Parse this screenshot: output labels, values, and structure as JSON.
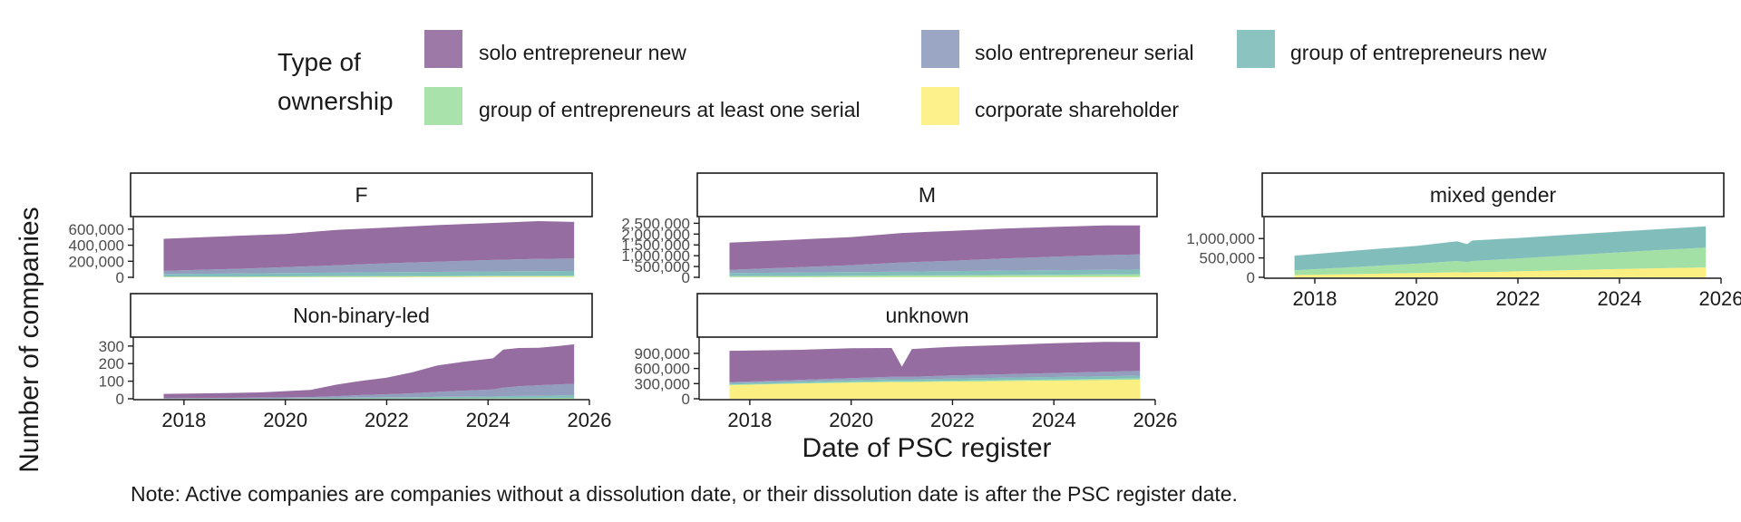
{
  "legend": {
    "title_line1": "Type of",
    "title_line2": "ownership",
    "items": [
      {
        "label": "solo entrepreneur new",
        "color": "#8C6198"
      },
      {
        "label": "solo entrepreneur serial",
        "color": "#8A96BA"
      },
      {
        "label": "group of entrepreneurs new",
        "color": "#76B9B5"
      },
      {
        "label": "group of entrepreneurs at least one serial",
        "color": "#9BDD9E"
      },
      {
        "label": "corporate shareholder",
        "color": "#FCEE77"
      }
    ]
  },
  "axis": {
    "x_title": "Date of PSC register",
    "y_title": "Number of companies"
  },
  "note": "Note: Active companies are companies without a dissolution date, or their dissolution date is after the PSC register date.",
  "chart_data": {
    "type": "area",
    "stacked": true,
    "facet_by": "gender of ownership",
    "x_ticks": [
      "2018",
      "2020",
      "2022",
      "2024",
      "2026"
    ],
    "xlim": [
      2017.0,
      2026.0
    ],
    "stack_order_bottom_to_top": [
      "corporate shareholder",
      "group of entrepreneurs at least one serial",
      "group of entrepreneurs new",
      "solo entrepreneur serial",
      "solo entrepreneur new"
    ],
    "panels": [
      {
        "title": "F",
        "y_ticks": [
          0,
          200000,
          400000,
          600000
        ],
        "y_tick_labels": [
          "0",
          "200,000",
          "400,000",
          "600,000"
        ],
        "ylim": [
          0,
          700000
        ],
        "x": [
          2017.6,
          2019,
          2020,
          2021,
          2022,
          2023,
          2024,
          2025,
          2025.7
        ],
        "series": [
          {
            "name": "corporate shareholder",
            "values": [
              3000,
              3500,
              4000,
              5000,
              6000,
              7000,
              8000,
              9000,
              9000
            ]
          },
          {
            "name": "group of entrepreneurs at least one serial",
            "values": [
              5000,
              6000,
              7000,
              8000,
              9000,
              10000,
              11000,
              12000,
              12000
            ]
          },
          {
            "name": "group of entrepreneurs new",
            "values": [
              35000,
              38000,
              42000,
              45000,
              48000,
              51000,
              54000,
              57000,
              58000
            ]
          },
          {
            "name": "solo entrepreneur serial",
            "values": [
              37000,
              58000,
              73000,
              92000,
              112000,
              127000,
              142000,
              152000,
              156000
            ]
          },
          {
            "name": "solo entrepreneur new",
            "values": [
              400000,
              410000,
              414000,
              440000,
              445000,
              455000,
              460000,
              470000,
              455000
            ]
          }
        ]
      },
      {
        "title": "M",
        "y_ticks": [
          0,
          500000,
          1000000,
          1500000,
          2000000,
          2500000
        ],
        "y_tick_labels": [
          "0",
          "500,000",
          "1,000,000",
          "1,500,000",
          "2,000,000",
          "2,500,000"
        ],
        "ylim": [
          0,
          2600000
        ],
        "x": [
          2017.6,
          2019,
          2020,
          2021,
          2022,
          2023,
          2024,
          2025,
          2025.7
        ],
        "series": [
          {
            "name": "corporate shareholder",
            "values": [
              10000,
              12000,
              14000,
              16000,
              18000,
              20000,
              22000,
              24000,
              25000
            ]
          },
          {
            "name": "group of entrepreneurs at least one serial",
            "values": [
              40000,
              50000,
              60000,
              70000,
              80000,
              90000,
              100000,
              110000,
              115000
            ]
          },
          {
            "name": "group of entrepreneurs new",
            "values": [
              150000,
              160000,
              170000,
              180000,
              190000,
              200000,
              210000,
              215000,
              220000
            ]
          },
          {
            "name": "solo entrepreneur serial",
            "values": [
              150000,
              250000,
              320000,
              420000,
              480000,
              560000,
              620000,
              680000,
              700000
            ]
          },
          {
            "name": "solo entrepreneur new",
            "values": [
              1250000,
              1280000,
              1296000,
              1364000,
              1382000,
              1380000,
              1378000,
              1371000,
              1340000
            ]
          }
        ]
      },
      {
        "title": "mixed gender",
        "y_ticks": [
          0,
          500000,
          1000000
        ],
        "y_tick_labels": [
          "0",
          "500,000",
          "1,000,000"
        ],
        "ylim": [
          0,
          1450000
        ],
        "x": [
          2017.6,
          2019,
          2020,
          2020.8,
          2021.0,
          2021.1,
          2022,
          2023,
          2024,
          2025,
          2025.7
        ],
        "series": [
          {
            "name": "corporate shareholder",
            "values": [
              60000,
              90000,
              110000,
              130000,
              125000,
              130000,
              155000,
              185000,
              215000,
              240000,
              255000
            ]
          },
          {
            "name": "group of entrepreneurs at least one serial",
            "values": [
              120000,
              190000,
              240000,
              290000,
              270000,
              290000,
              330000,
              380000,
              430000,
              480000,
              510000
            ]
          },
          {
            "name": "group of entrepreneurs new",
            "values": [
              380000,
              430000,
              460000,
              510000,
              460000,
              530000,
              530000,
              535000,
              535000,
              540000,
              550000
            ]
          },
          {
            "name": "solo entrepreneur serial",
            "values": [
              0,
              0,
              0,
              0,
              0,
              0,
              0,
              0,
              0,
              0,
              0
            ]
          },
          {
            "name": "solo entrepreneur new",
            "values": [
              0,
              0,
              0,
              0,
              0,
              0,
              0,
              0,
              0,
              0,
              0
            ]
          }
        ]
      },
      {
        "title": "Non-binary-led",
        "y_ticks": [
          0,
          100,
          200,
          300
        ],
        "y_tick_labels": [
          "0",
          "100",
          "200",
          "300"
        ],
        "ylim": [
          0,
          330
        ],
        "x": [
          2017.6,
          2018.5,
          2019.5,
          2020.5,
          2021,
          2021.5,
          2022,
          2022.5,
          2023,
          2023.5,
          2024.1,
          2024.3,
          2024.6,
          2025,
          2025.4,
          2025.7
        ],
        "series": [
          {
            "name": "corporate shareholder",
            "values": [
              0,
              0,
              0,
              0,
              0,
              0,
              0,
              0,
              0,
              0,
              0,
              0,
              0,
              0,
              0,
              0
            ]
          },
          {
            "name": "group of entrepreneurs at least one serial",
            "values": [
              0,
              0,
              0,
              1,
              1,
              2,
              2,
              2,
              3,
              3,
              3,
              4,
              4,
              4,
              5,
              5
            ]
          },
          {
            "name": "group of entrepreneurs new",
            "values": [
              1,
              1,
              2,
              3,
              4,
              5,
              6,
              7,
              8,
              9,
              10,
              11,
              12,
              13,
              14,
              15
            ]
          },
          {
            "name": "solo entrepreneur serial",
            "values": [
              2,
              3,
              4,
              6,
              10,
              14,
              18,
              22,
              28,
              34,
              40,
              48,
              55,
              60,
              63,
              65
            ]
          },
          {
            "name": "solo entrepreneur new",
            "values": [
              25,
              27,
              30,
              40,
              65,
              81,
              94,
              119,
              151,
              164,
              177,
              217,
              218,
              213,
              218,
              225
            ]
          }
        ]
      },
      {
        "title": "unknown",
        "y_ticks": [
          0,
          300000,
          600000,
          900000
        ],
        "y_tick_labels": [
          "0",
          "300,000",
          "600,000",
          "900,000"
        ],
        "ylim": [
          0,
          1150000
        ],
        "x": [
          2017.6,
          2019,
          2020,
          2020.8,
          2021.0,
          2021.2,
          2022,
          2023,
          2024,
          2025,
          2025.7
        ],
        "series": [
          {
            "name": "corporate shareholder",
            "values": [
              270000,
              300000,
              320000,
              330000,
              330000,
              330000,
              340000,
              350000,
              360000,
              370000,
              380000
            ]
          },
          {
            "name": "group of entrepreneurs at least one serial",
            "values": [
              10000,
              12000,
              14000,
              16000,
              16000,
              16000,
              18000,
              20000,
              22000,
              24000,
              25000
            ]
          },
          {
            "name": "group of entrepreneurs new",
            "values": [
              30000,
              33000,
              36000,
              40000,
              40000,
              40000,
              43000,
              46000,
              49000,
              52000,
              54000
            ]
          },
          {
            "name": "solo entrepreneur serial",
            "values": [
              20000,
              30000,
              40000,
              50000,
              50000,
              50000,
              60000,
              70000,
              80000,
              90000,
              95000
            ]
          },
          {
            "name": "solo entrepreneur new",
            "values": [
              620000,
              595000,
              590000,
              570000,
              200000,
              550000,
              570000,
              580000,
              590000,
              590000,
              570000
            ]
          }
        ]
      }
    ]
  }
}
